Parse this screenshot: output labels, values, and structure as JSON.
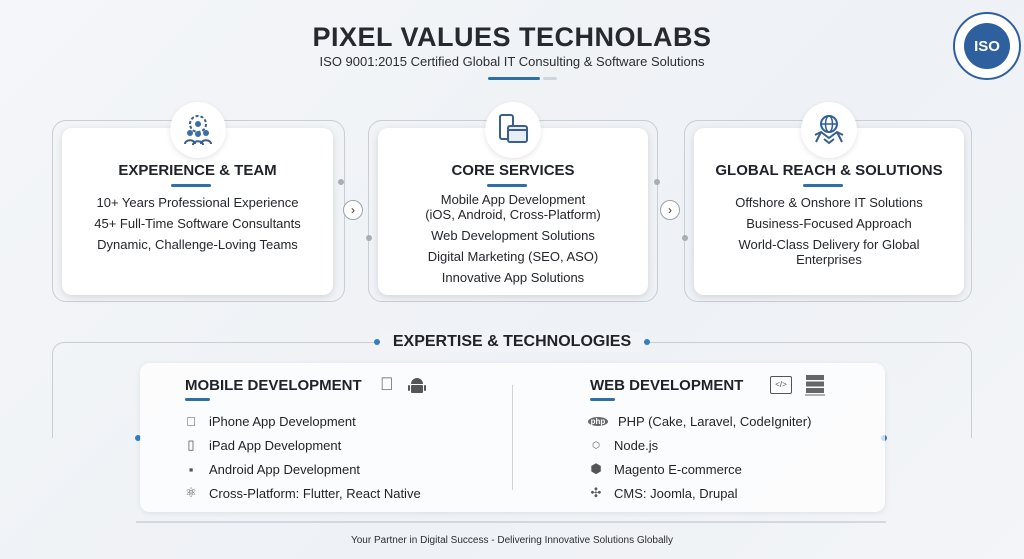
{
  "header": {
    "title": "PIXEL VALUES TECHNOLABS",
    "subtitle": "ISO 9001:2015 Certified Global IT Consulting & Software Solutions",
    "badge": "ISO",
    "accent": "#2f6fa8"
  },
  "cards": [
    {
      "title": "EXPERIENCE & TEAM",
      "icon": "team-gear-icon",
      "items": [
        "10+ Years Professional Experience",
        "45+ Full-Time Software Consultants",
        "Dynamic, Challenge-Loving Teams"
      ]
    },
    {
      "title": "CORE SERVICES",
      "icon": "devices-icon",
      "items": [
        "Mobile App Development",
        "(iOS, Android, Cross-Platform)",
        "Web Development Solutions",
        "Digital Marketing (SEO, ASO)",
        "Innovative App Solutions"
      ]
    },
    {
      "title": "GLOBAL REACH & SOLUTIONS",
      "icon": "globe-handshake-icon",
      "items": [
        "Offshore & Onshore IT Solutions",
        "Business-Focused Approach",
        "World-Class Delivery for Global",
        "Enterprises"
      ]
    }
  ],
  "expertise": {
    "title": "EXPERTISE & TECHNOLOGIES",
    "mobile": {
      "title": "MOBILE DEVELOPMENT",
      "items": [
        {
          "icon": "apple-icon",
          "label": "iPhone App Development"
        },
        {
          "icon": "tablet-icon",
          "label": "iPad App Development"
        },
        {
          "icon": "android-icon",
          "label": "Android App Development"
        },
        {
          "icon": "react-icon",
          "label": "Cross-Platform: Flutter, React Native"
        }
      ]
    },
    "web": {
      "title": "WEB DEVELOPMENT",
      "items": [
        {
          "icon": "php-icon",
          "label": "PHP (Cake, Laravel, CodeIgniter)"
        },
        {
          "icon": "nodejs-icon",
          "label": "Node.js"
        },
        {
          "icon": "magento-icon",
          "label": "Magento E-commerce"
        },
        {
          "icon": "joomla-icon",
          "label": "CMS: Joomla, Drupal"
        }
      ]
    }
  },
  "footer": "Your Partner in Digital Success - Delivering Innovative Solutions Globally"
}
